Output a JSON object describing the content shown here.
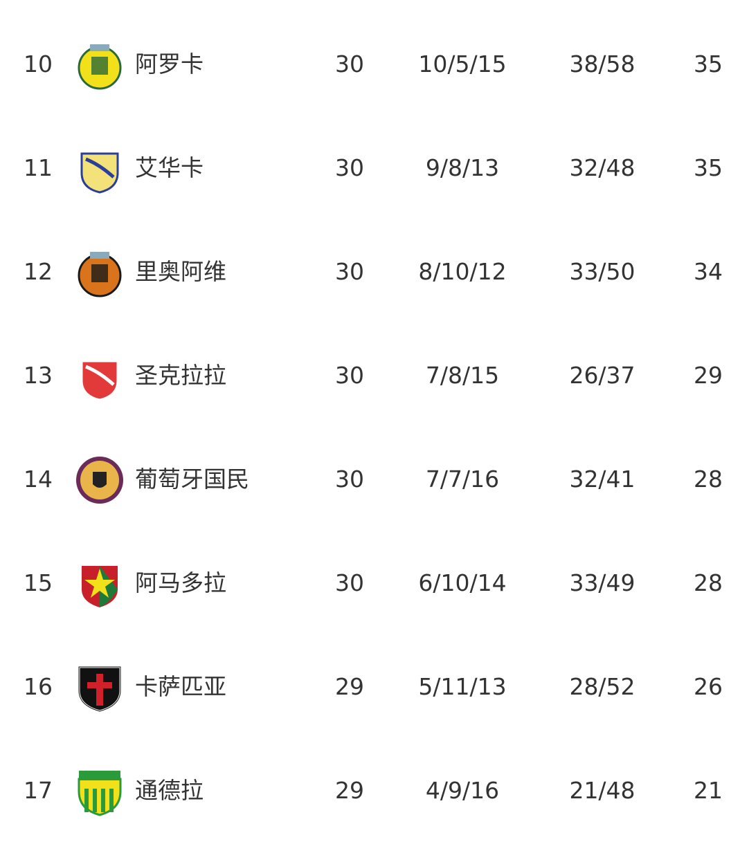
{
  "standings": [
    {
      "rank": "10",
      "team": "阿罗卡",
      "played": "30",
      "wdl": "10/5/15",
      "goals": "38/58",
      "points": "35",
      "logo": "arouca-crest",
      "colors": [
        "#f2e01a",
        "#2a6a3a"
      ]
    },
    {
      "rank": "11",
      "team": "艾华卡",
      "played": "30",
      "wdl": "9/8/13",
      "goals": "32/48",
      "points": "35",
      "logo": "vizela-crest",
      "colors": [
        "#f3e27a",
        "#2a3f9a"
      ]
    },
    {
      "rank": "12",
      "team": "里奥阿维",
      "played": "30",
      "wdl": "8/10/12",
      "goals": "33/50",
      "points": "34",
      "logo": "rio-ave-crest",
      "colors": [
        "#d9731c",
        "#1a1a1a"
      ]
    },
    {
      "rank": "13",
      "team": "圣克拉拉",
      "played": "30",
      "wdl": "7/8/15",
      "goals": "26/37",
      "points": "29",
      "logo": "santa-clara-crest",
      "colors": [
        "#e23a3a",
        "#ffffff"
      ]
    },
    {
      "rank": "14",
      "team": "葡萄牙国民",
      "played": "30",
      "wdl": "7/7/16",
      "goals": "32/41",
      "points": "28",
      "logo": "nacional-crest",
      "colors": [
        "#e9b54a",
        "#6a2a5a"
      ]
    },
    {
      "rank": "15",
      "team": "阿马多拉",
      "played": "30",
      "wdl": "6/10/14",
      "goals": "33/49",
      "points": "28",
      "logo": "estrela-amadora-crest",
      "colors": [
        "#c8202a",
        "#1f7a3a"
      ]
    },
    {
      "rank": "16",
      "team": "卡萨匹亚",
      "played": "29",
      "wdl": "5/11/13",
      "goals": "28/52",
      "points": "26",
      "logo": "casa-pia-crest",
      "colors": [
        "#111111",
        "#d0202a"
      ]
    },
    {
      "rank": "17",
      "team": "通德拉",
      "played": "29",
      "wdl": "4/9/16",
      "goals": "21/48",
      "points": "21",
      "logo": "tondela-crest",
      "colors": [
        "#2a9a3a",
        "#f2e01a"
      ]
    }
  ]
}
